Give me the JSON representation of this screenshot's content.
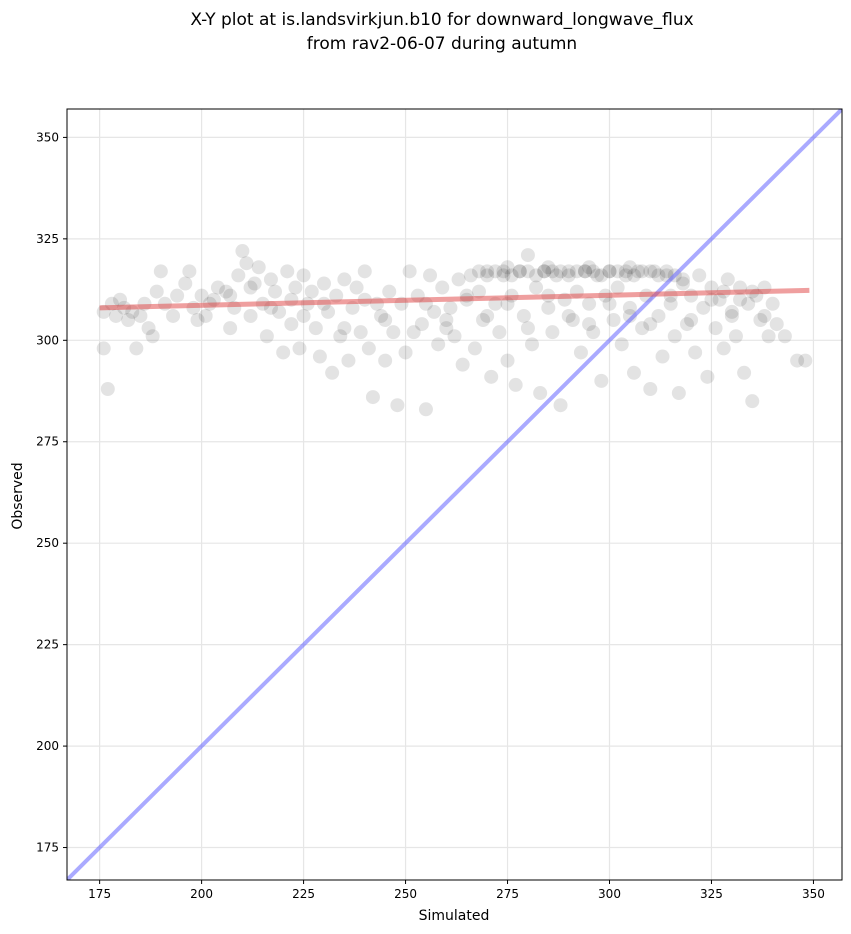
{
  "chart_data": {
    "type": "scatter",
    "title_lines": [
      "X-Y plot at is.landsvirkjun.b10 for downward_longwave_flux",
      "from rav2-06-07 during autumn"
    ],
    "xlabel": "Simulated",
    "ylabel": "Observed",
    "xlim": [
      167,
      357
    ],
    "ylim": [
      167,
      357
    ],
    "xticks": [
      175,
      200,
      225,
      250,
      275,
      300,
      325,
      350
    ],
    "yticks": [
      175,
      200,
      225,
      250,
      275,
      300,
      325,
      350
    ],
    "grid": true,
    "colors": {
      "points": "#000000",
      "identity_line": "#5555ff",
      "regression_line": "#e04040",
      "grid": "#e6e6e6"
    },
    "identity_line": {
      "x": [
        167,
        357
      ],
      "y": [
        167,
        357
      ]
    },
    "regression_line": {
      "x": [
        175,
        349
      ],
      "y": [
        308,
        312.3
      ]
    },
    "series": [
      {
        "points": [
          [
            176,
            307
          ],
          [
            176,
            298
          ],
          [
            177,
            288
          ],
          [
            178,
            309
          ],
          [
            179,
            306
          ],
          [
            180,
            310
          ],
          [
            181,
            308
          ],
          [
            182,
            305
          ],
          [
            183,
            307
          ],
          [
            184,
            298
          ],
          [
            185,
            306
          ],
          [
            186,
            309
          ],
          [
            187,
            303
          ],
          [
            188,
            301
          ],
          [
            189,
            312
          ],
          [
            190,
            317
          ],
          [
            191,
            309
          ],
          [
            193,
            306
          ],
          [
            194,
            311
          ],
          [
            196,
            314
          ],
          [
            197,
            317
          ],
          [
            198,
            308
          ],
          [
            199,
            305
          ],
          [
            200,
            311
          ],
          [
            201,
            306
          ],
          [
            203,
            310
          ],
          [
            204,
            313
          ],
          [
            206,
            312
          ],
          [
            207,
            303
          ],
          [
            208,
            308
          ],
          [
            209,
            316
          ],
          [
            210,
            322
          ],
          [
            211,
            319
          ],
          [
            212,
            306
          ],
          [
            213,
            314
          ],
          [
            214,
            318
          ],
          [
            215,
            309
          ],
          [
            216,
            301
          ],
          [
            217,
            315
          ],
          [
            218,
            312
          ],
          [
            219,
            307
          ],
          [
            220,
            297
          ],
          [
            221,
            317
          ],
          [
            222,
            304
          ],
          [
            223,
            313
          ],
          [
            224,
            298
          ],
          [
            225,
            316
          ],
          [
            226,
            309
          ],
          [
            227,
            312
          ],
          [
            228,
            303
          ],
          [
            229,
            296
          ],
          [
            230,
            314
          ],
          [
            231,
            307
          ],
          [
            232,
            292
          ],
          [
            233,
            311
          ],
          [
            234,
            301
          ],
          [
            235,
            315
          ],
          [
            236,
            295
          ],
          [
            237,
            308
          ],
          [
            238,
            313
          ],
          [
            239,
            302
          ],
          [
            240,
            317
          ],
          [
            241,
            298
          ],
          [
            242,
            286
          ],
          [
            243,
            309
          ],
          [
            244,
            306
          ],
          [
            245,
            295
          ],
          [
            246,
            312
          ],
          [
            247,
            302
          ],
          [
            248,
            284
          ],
          [
            249,
            309
          ],
          [
            250,
            297
          ],
          [
            251,
            317
          ],
          [
            252,
            302
          ],
          [
            253,
            311
          ],
          [
            254,
            304
          ],
          [
            255,
            283
          ],
          [
            256,
            316
          ],
          [
            257,
            307
          ],
          [
            258,
            299
          ],
          [
            259,
            313
          ],
          [
            260,
            305
          ],
          [
            261,
            308
          ],
          [
            262,
            301
          ],
          [
            263,
            315
          ],
          [
            264,
            294
          ],
          [
            265,
            310
          ],
          [
            266,
            316
          ],
          [
            267,
            298
          ],
          [
            268,
            312
          ],
          [
            269,
            305
          ],
          [
            270,
            317
          ],
          [
            271,
            291
          ],
          [
            272,
            309
          ],
          [
            273,
            302
          ],
          [
            274,
            316
          ],
          [
            275,
            295
          ],
          [
            276,
            311
          ],
          [
            277,
            289
          ],
          [
            278,
            317
          ],
          [
            279,
            306
          ],
          [
            280,
            321
          ],
          [
            281,
            299
          ],
          [
            282,
            313
          ],
          [
            283,
            287
          ],
          [
            284,
            317
          ],
          [
            285,
            308
          ],
          [
            286,
            302
          ],
          [
            287,
            316
          ],
          [
            288,
            284
          ],
          [
            289,
            310
          ],
          [
            290,
            317
          ],
          [
            291,
            305
          ],
          [
            292,
            312
          ],
          [
            293,
            297
          ],
          [
            294,
            317
          ],
          [
            295,
            309
          ],
          [
            296,
            302
          ],
          [
            297,
            316
          ],
          [
            298,
            290
          ],
          [
            299,
            311
          ],
          [
            300,
            317
          ],
          [
            301,
            305
          ],
          [
            302,
            313
          ],
          [
            303,
            299
          ],
          [
            304,
            316
          ],
          [
            305,
            308
          ],
          [
            306,
            292
          ],
          [
            307,
            317
          ],
          [
            308,
            303
          ],
          [
            309,
            311
          ],
          [
            310,
            288
          ],
          [
            311,
            317
          ],
          [
            312,
            306
          ],
          [
            313,
            296
          ],
          [
            314,
            316
          ],
          [
            315,
            309
          ],
          [
            316,
            301
          ],
          [
            317,
            287
          ],
          [
            318,
            314
          ],
          [
            319,
            304
          ],
          [
            320,
            311
          ],
          [
            321,
            297
          ],
          [
            322,
            316
          ],
          [
            323,
            308
          ],
          [
            324,
            291
          ],
          [
            325,
            313
          ],
          [
            326,
            303
          ],
          [
            327,
            310
          ],
          [
            328,
            298
          ],
          [
            329,
            315
          ],
          [
            330,
            306
          ],
          [
            331,
            301
          ],
          [
            332,
            313
          ],
          [
            333,
            292
          ],
          [
            334,
            309
          ],
          [
            335,
            285
          ],
          [
            336,
            311
          ],
          [
            337,
            305
          ],
          [
            338,
            313
          ],
          [
            339,
            301
          ],
          [
            340,
            309
          ],
          [
            341,
            304
          ],
          [
            343,
            301
          ],
          [
            346,
            295
          ],
          [
            348,
            295
          ],
          [
            268,
            317
          ],
          [
            270,
            316
          ],
          [
            272,
            317
          ],
          [
            274,
            317
          ],
          [
            276,
            316
          ],
          [
            278,
            317
          ],
          [
            280,
            317
          ],
          [
            282,
            316
          ],
          [
            284,
            317
          ],
          [
            286,
            317
          ],
          [
            288,
            317
          ],
          [
            290,
            316
          ],
          [
            292,
            317
          ],
          [
            294,
            317
          ],
          [
            296,
            317
          ],
          [
            298,
            316
          ],
          [
            300,
            317
          ],
          [
            302,
            317
          ],
          [
            304,
            317
          ],
          [
            306,
            316
          ],
          [
            308,
            317
          ],
          [
            310,
            317
          ],
          [
            312,
            316
          ],
          [
            314,
            317
          ],
          [
            316,
            316
          ],
          [
            318,
            315
          ],
          [
            275,
            318
          ],
          [
            285,
            318
          ],
          [
            295,
            318
          ],
          [
            305,
            318
          ],
          [
            225,
            306
          ],
          [
            230,
            309
          ],
          [
            235,
            303
          ],
          [
            240,
            310
          ],
          [
            245,
            305
          ],
          [
            255,
            309
          ],
          [
            260,
            303
          ],
          [
            265,
            311
          ],
          [
            270,
            306
          ],
          [
            275,
            309
          ],
          [
            280,
            303
          ],
          [
            285,
            311
          ],
          [
            290,
            306
          ],
          [
            295,
            304
          ],
          [
            300,
            309
          ],
          [
            305,
            306
          ],
          [
            310,
            304
          ],
          [
            315,
            311
          ],
          [
            320,
            305
          ],
          [
            325,
            310
          ],
          [
            330,
            307
          ],
          [
            335,
            312
          ],
          [
            338,
            306
          ],
          [
            332,
            310
          ],
          [
            328,
            312
          ],
          [
            202,
            309
          ],
          [
            207,
            311
          ],
          [
            212,
            313
          ],
          [
            217,
            308
          ],
          [
            222,
            310
          ]
        ]
      }
    ]
  }
}
